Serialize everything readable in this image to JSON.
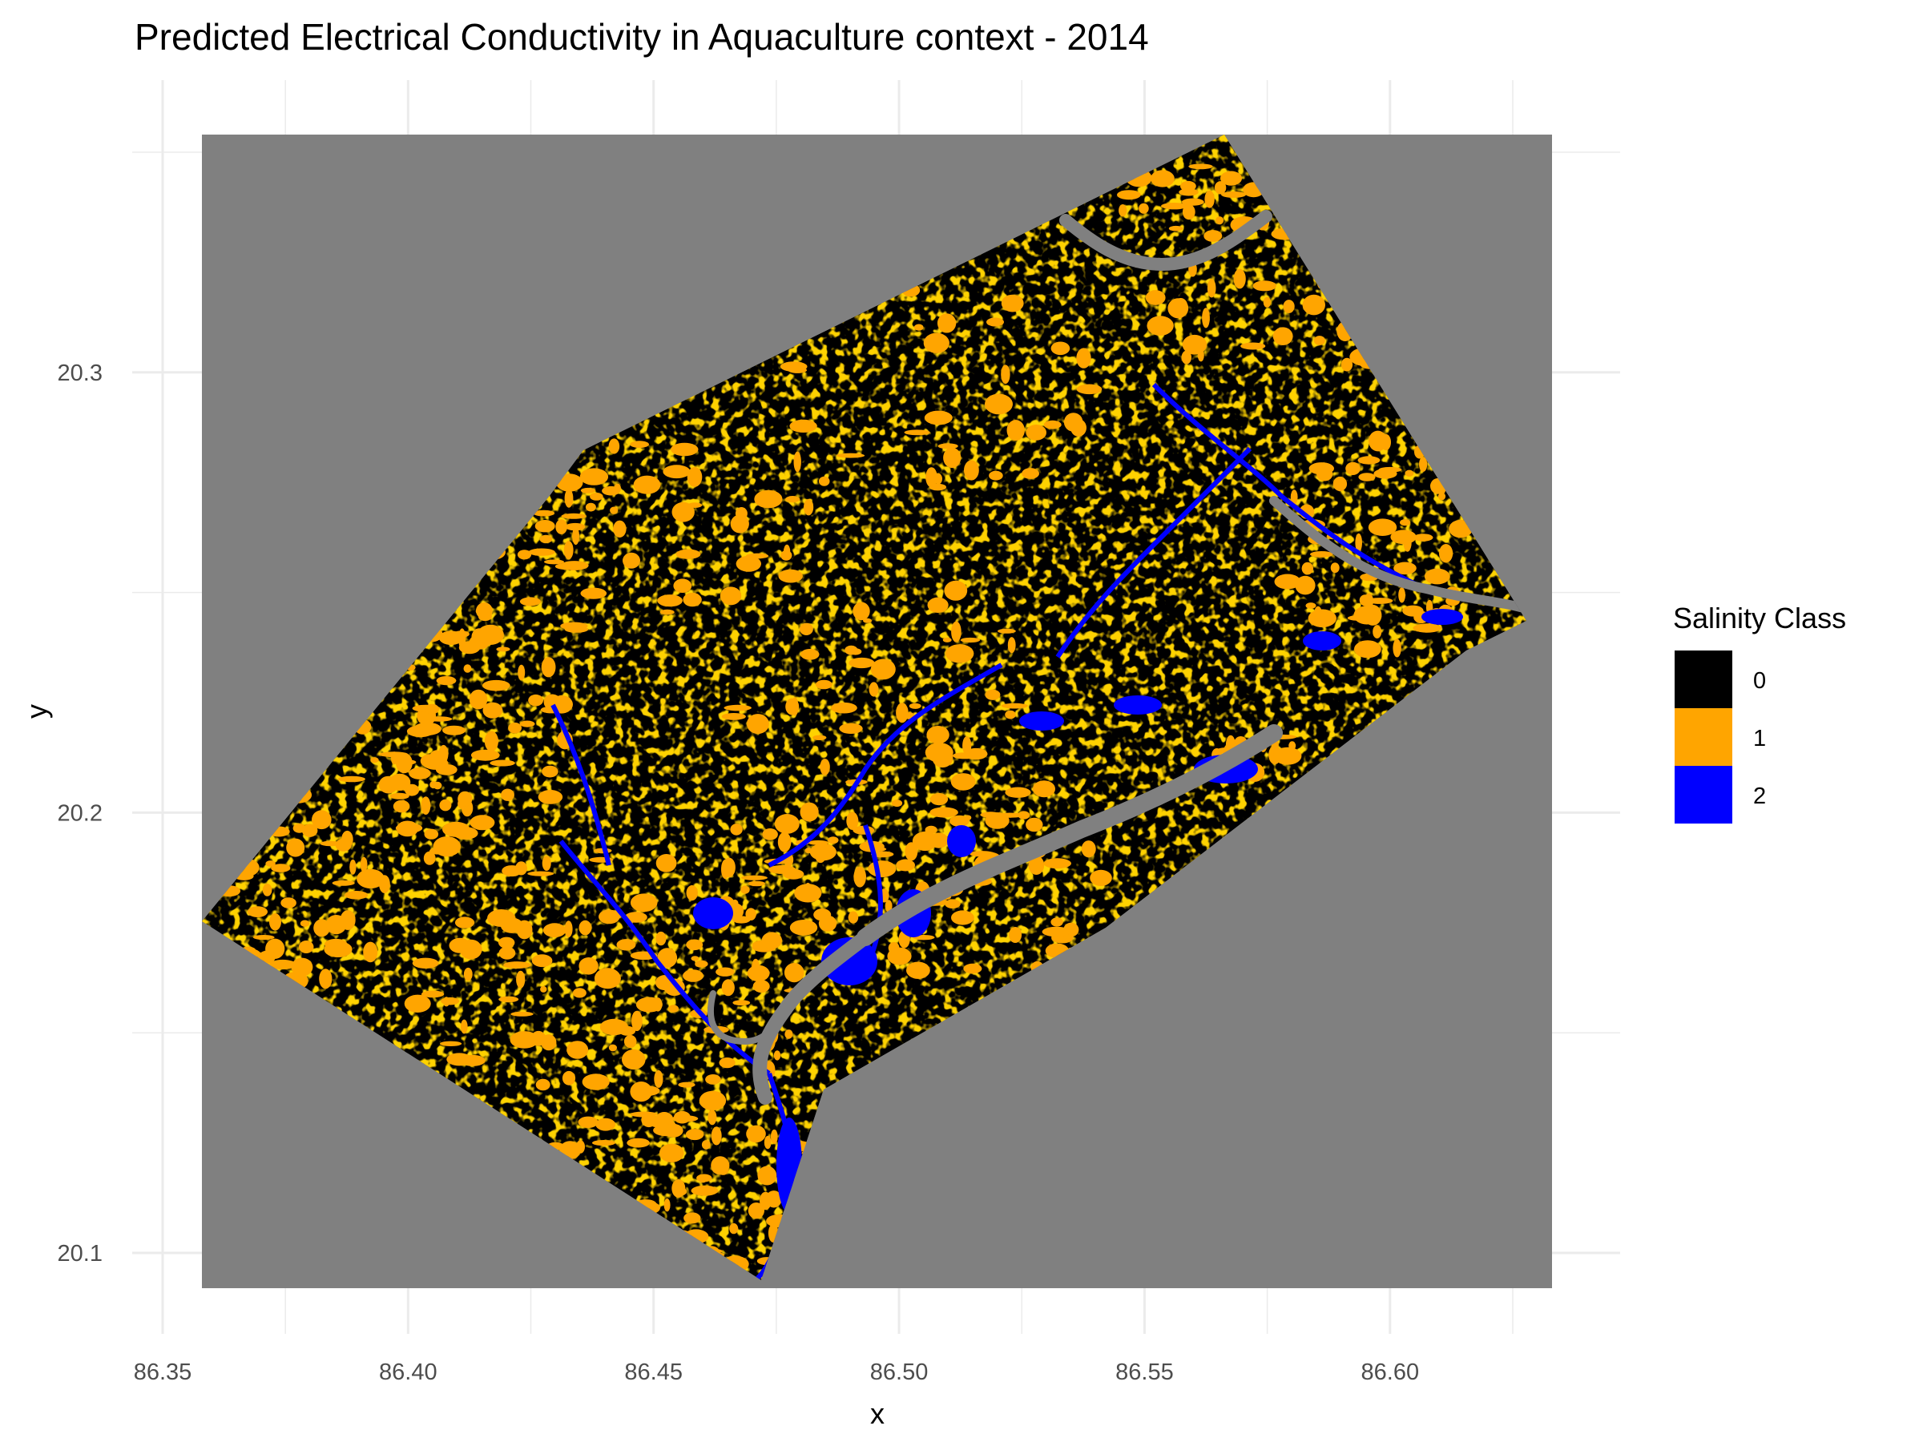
{
  "title": "Predicted Electrical Conductivity in Aquaculture context - 2014",
  "x_axis": {
    "label": "x",
    "ticks": [
      "86.35",
      "86.40",
      "86.45",
      "86.50",
      "86.55",
      "86.60"
    ],
    "tick_values": [
      86.35,
      86.4,
      86.45,
      86.5,
      86.55,
      86.6
    ],
    "minor_values": [
      86.375,
      86.425,
      86.475,
      86.525,
      86.575,
      86.625
    ]
  },
  "y_axis": {
    "label": "y",
    "ticks": [
      "20.1",
      "20.2",
      "20.3"
    ],
    "tick_values": [
      20.1,
      20.2,
      20.3
    ],
    "minor_values": [
      20.15,
      20.25,
      20.35
    ]
  },
  "raster_extent": {
    "xlim": [
      86.358,
      86.633
    ],
    "ylim": [
      20.092,
      20.354
    ]
  },
  "background_color": "#808080",
  "legend": {
    "title": "Salinity Class",
    "placement": "right",
    "items": [
      {
        "label": "0",
        "color": "#000000"
      },
      {
        "label": "1",
        "color": "#FFA500"
      },
      {
        "label": "2",
        "color": "#0000FF"
      }
    ]
  },
  "grid": "on"
}
